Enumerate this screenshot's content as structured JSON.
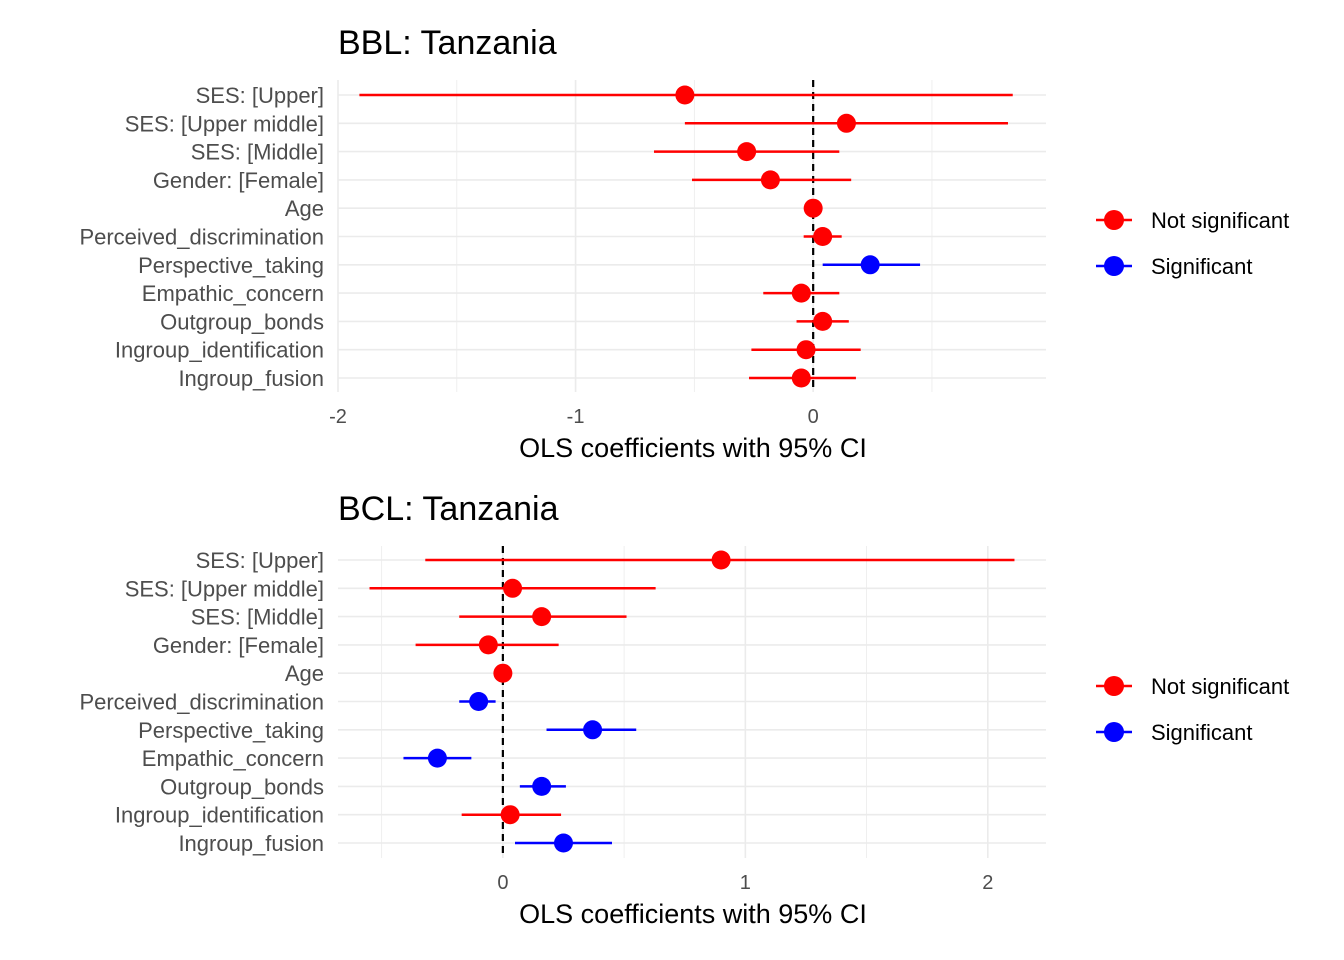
{
  "chart_data": [
    {
      "type": "forest",
      "title": "BBL: Tanzania",
      "xlabel": "OLS coefficients with 95% CI",
      "xlim": [
        -2.0,
        0.98
      ],
      "xticks": [
        -2,
        -1,
        0
      ],
      "reference_line": 0,
      "categories": [
        "SES:  [Upper]",
        "SES:  [Upper middle]",
        "SES:  [Middle]",
        "Gender:  [Female]",
        "Age",
        "Perceived_discrimination",
        "Perspective_taking",
        "Empathic_concern",
        "Outgroup_bonds",
        "Ingroup_identification",
        "Ingroup_fusion"
      ],
      "estimates": [
        -0.54,
        0.14,
        -0.28,
        -0.18,
        0.0,
        0.04,
        0.24,
        -0.05,
        0.04,
        -0.03,
        -0.05
      ],
      "ci_low": [
        -1.91,
        -0.54,
        -0.67,
        -0.51,
        0.0,
        -0.04,
        0.04,
        -0.21,
        -0.07,
        -0.26,
        -0.27
      ],
      "ci_high": [
        0.84,
        0.82,
        0.11,
        0.16,
        0.0,
        0.12,
        0.45,
        0.11,
        0.15,
        0.2,
        0.18
      ],
      "significant": [
        false,
        false,
        false,
        false,
        false,
        false,
        true,
        false,
        false,
        false,
        false
      ],
      "legend": {
        "position": "right",
        "entries": [
          "Not significant",
          "Significant"
        ]
      },
      "colors": {
        "Not significant": "#ff0000",
        "Significant": "#0000ff",
        "grid": "#ebebeb",
        "ref_line": "#000000"
      }
    },
    {
      "type": "forest",
      "title": "BCL: Tanzania",
      "xlabel": "OLS coefficients with 95% CI",
      "xlim": [
        -0.68,
        2.24
      ],
      "xticks": [
        0,
        1,
        2
      ],
      "reference_line": 0,
      "categories": [
        "SES:  [Upper]",
        "SES:  [Upper middle]",
        "SES:  [Middle]",
        "Gender:  [Female]",
        "Age",
        "Perceived_discrimination",
        "Perspective_taking",
        "Empathic_concern",
        "Outgroup_bonds",
        "Ingroup_identification",
        "Ingroup_fusion"
      ],
      "estimates": [
        0.9,
        0.04,
        0.16,
        -0.06,
        0.0,
        -0.1,
        0.37,
        -0.27,
        0.16,
        0.03,
        0.25
      ],
      "ci_low": [
        -0.32,
        -0.55,
        -0.18,
        -0.36,
        0.0,
        -0.18,
        0.18,
        -0.41,
        0.07,
        -0.17,
        0.05
      ],
      "ci_high": [
        2.11,
        0.63,
        0.51,
        0.23,
        0.0,
        -0.03,
        0.55,
        -0.13,
        0.26,
        0.24,
        0.45
      ],
      "significant": [
        false,
        false,
        false,
        false,
        false,
        true,
        true,
        true,
        true,
        false,
        true
      ],
      "legend": {
        "position": "right",
        "entries": [
          "Not significant",
          "Significant"
        ]
      },
      "colors": {
        "Not significant": "#ff0000",
        "Significant": "#0000ff",
        "grid": "#ebebeb",
        "ref_line": "#000000"
      }
    }
  ]
}
